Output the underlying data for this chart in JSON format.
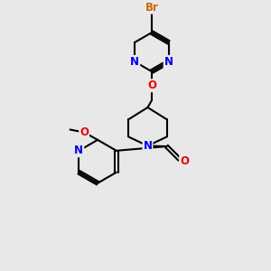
{
  "background_color": "#e8e8e8",
  "bond_color": "#000000",
  "bond_width": 1.5,
  "atom_colors": {
    "N": "#0000ee",
    "O": "#ee0000",
    "Br": "#cc6600",
    "C": "#000000"
  },
  "font_size_atom": 8.5,
  "font_size_br": 8.5
}
